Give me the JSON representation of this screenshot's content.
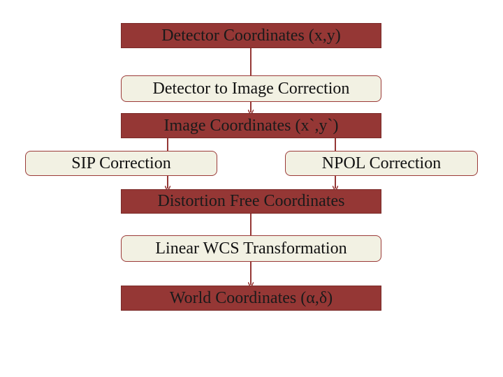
{
  "colors": {
    "dark_box": "#953735",
    "light_box": "#f2f1e3",
    "connector": "#953735"
  },
  "nodes": {
    "detector_coords": "Detector Coordinates (x,y)",
    "det_to_image": "Detector to Image Correction",
    "image_coords": "Image Coordinates (x`,y`)",
    "sip": "SIP Correction",
    "npol": "NPOL Correction",
    "distortion_free": "Distortion Free Coordinates",
    "linear_wcs": "Linear WCS Transformation",
    "world_coords": "World Coordinates (α,δ)"
  },
  "edges": [
    [
      "detector_coords",
      "det_to_image"
    ],
    [
      "det_to_image",
      "image_coords"
    ],
    [
      "image_coords",
      "sip"
    ],
    [
      "image_coords",
      "npol"
    ],
    [
      "sip",
      "distortion_free"
    ],
    [
      "npol",
      "distortion_free"
    ],
    [
      "distortion_free",
      "linear_wcs"
    ],
    [
      "linear_wcs",
      "world_coords"
    ]
  ]
}
